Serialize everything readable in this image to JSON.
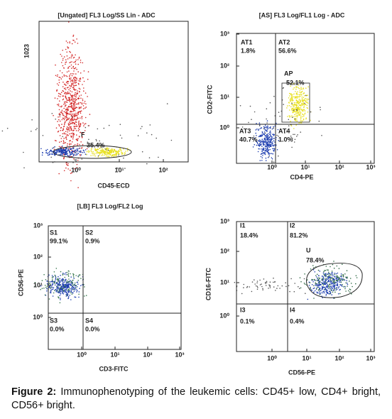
{
  "panels": [
    {
      "title": "[Ungated] FL3 Log/SS Lin - ADC",
      "y_label": "1023",
      "x_label": "CD45-ECD",
      "x_ticks": [
        "10⁰",
        "10¹",
        "10²"
      ],
      "y_ticks": [],
      "gates": [
        {
          "name": "F",
          "percent": "35.4%"
        }
      ]
    },
    {
      "title": "[AS] FL3 Log/FL1 Log - ADC",
      "y_label": "CD2-FITC",
      "x_label": "CD4-PE",
      "x_ticks": [
        "10⁰",
        "10¹",
        "10²",
        "10³"
      ],
      "y_ticks": [
        "10³",
        "10²",
        "10¹",
        "10⁰"
      ],
      "gates": [
        {
          "name": "AT1",
          "percent": "1.8%"
        },
        {
          "name": "AT2",
          "percent": "56.6%"
        },
        {
          "name": "AP",
          "percent": "52.1%"
        },
        {
          "name": "AT3",
          "percent": "40.7%"
        },
        {
          "name": "AT4",
          "percent": "1.0%"
        }
      ]
    },
    {
      "title": "[LB] FL3 Log/FL2 Log",
      "y_label": "CD56-PE",
      "x_label": "CD3-FITC",
      "x_ticks": [
        "10⁰",
        "10¹",
        "10²",
        "10³"
      ],
      "y_ticks": [
        "10³",
        "10²",
        "10¹",
        "10⁰"
      ],
      "gates": [
        {
          "name": "S1",
          "percent": "99.1%"
        },
        {
          "name": "S2",
          "percent": "0.9%"
        },
        {
          "name": "S3",
          "percent": "0.0%"
        },
        {
          "name": "S4",
          "percent": "0.0%"
        }
      ]
    },
    {
      "y_label": "CD16-FITC",
      "x_label": "CD56-PE",
      "x_ticks": [
        "10⁰",
        "10¹",
        "10²",
        "10³"
      ],
      "y_ticks": [
        "10³",
        "10²",
        "10¹",
        "10⁰"
      ],
      "gates": [
        {
          "name": "I1",
          "percent": "18.4%"
        },
        {
          "name": "I2",
          "percent": "81.2%"
        },
        {
          "name": "U",
          "percent": "78.4%"
        },
        {
          "name": "I3",
          "percent": "0.1%"
        },
        {
          "name": "I4",
          "percent": "0.4%"
        }
      ]
    }
  ],
  "caption": {
    "label": "Figure 2:",
    "text": "Immunophenotyping of the leukemic cells: CD45+ low, CD4+ bright, CD56+ bright."
  }
}
